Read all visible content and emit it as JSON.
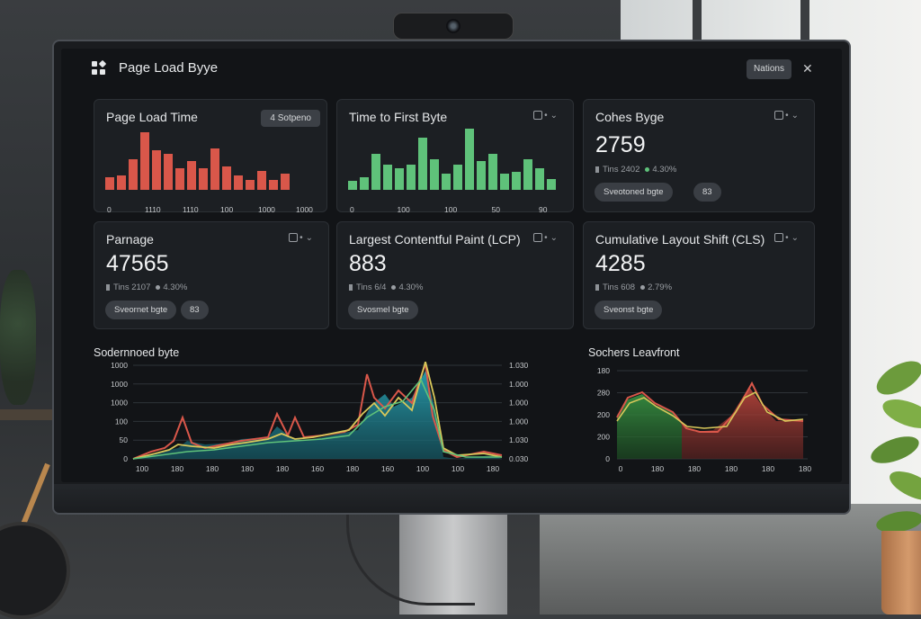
{
  "app": {
    "title": "Page Load Byye",
    "menu_label": "Nations"
  },
  "cards": {
    "page_load": {
      "title": "Page Load Time",
      "badge": "4  Sotpeno",
      "bars": [
        0.18,
        0.2,
        0.42,
        0.8,
        0.55,
        0.5,
        0.3,
        0.4,
        0.3,
        0.58,
        0.32,
        0.2,
        0.14,
        0.26,
        0.14,
        0.22
      ],
      "color": "#d9574a",
      "xticks": [
        "0",
        "1110",
        "1110",
        "100",
        "1000",
        "1000"
      ]
    },
    "ttfb": {
      "title": "Time to First Byte",
      "bars": [
        0.12,
        0.18,
        0.5,
        0.35,
        0.3,
        0.35,
        0.72,
        0.42,
        0.22,
        0.35,
        0.85,
        0.4,
        0.5,
        0.22,
        0.25,
        0.42,
        0.3,
        0.15
      ],
      "color": "#5fc27a",
      "xticks": [
        "0",
        "100",
        "100",
        "50",
        "90"
      ]
    },
    "cohes": {
      "title": "Cohes Byge",
      "value": "2759",
      "sub_label": "Tins 2402",
      "change": "4.30%",
      "change_color": "#5fc27a",
      "pill1": "Sveotoned bgte",
      "pill2": "83"
    },
    "parnage": {
      "title": "Parnage",
      "value": "47565",
      "sub_label": "Tins 2107",
      "change": "4.30%",
      "change_color": "#9a9ea3",
      "pill1": "Sveornet bgte",
      "pill2": "83"
    },
    "lcp": {
      "title": "Largest Contentful Paint (LCP)",
      "value": "883",
      "sub_label": "Tins 6/4",
      "change": "4.30%",
      "change_color": "#9a9ea3",
      "pill1": "Svosmel bgte"
    },
    "cls": {
      "title": "Cumulative Layout Shift (CLS)",
      "value": "4285",
      "sub_label": "Tins 608",
      "change": "2.79%",
      "change_color": "#9a9ea3",
      "pill1": "Sveonst bgte"
    }
  },
  "bottom_left": {
    "title": "Sodernnoed byte",
    "left_ticks": [
      "1000",
      "1000",
      "1000",
      "100",
      "50",
      "0"
    ],
    "right_ticks": [
      "1.030",
      "1.000",
      "1.000",
      "1.000",
      "1.030",
      "0.030"
    ],
    "x_ticks": [
      "100",
      "180",
      "180",
      "180",
      "180",
      "160",
      "180",
      "160",
      "100",
      "100",
      "180"
    ]
  },
  "bottom_right": {
    "title": "Sochers Leavfront",
    "y_ticks": [
      "180",
      "280",
      "200",
      "200",
      "0"
    ],
    "x_ticks": [
      "0",
      "180",
      "180",
      "180",
      "180",
      "180"
    ]
  },
  "icons": {
    "logo": "grid-icon",
    "close": "close-icon",
    "window": "window-icon",
    "more": "more-icon"
  },
  "colors": {
    "accent_red": "#d9574a",
    "accent_green": "#5fc27a",
    "accent_teal": "#1f8a9a",
    "accent_yellow": "#d7c75a"
  }
}
